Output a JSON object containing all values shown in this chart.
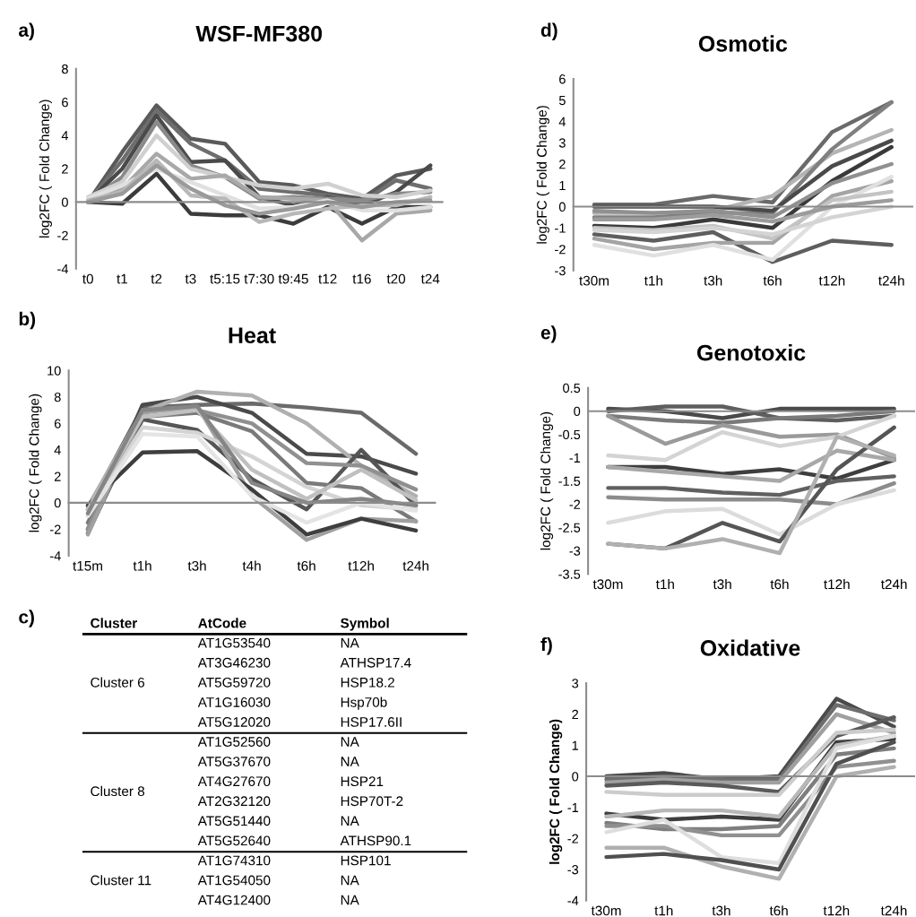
{
  "chart_data": [
    {
      "type": "line",
      "title": "WSF-MF380",
      "ylabel": "log2FC ( Fold Change)",
      "annotations": [
        "a)"
      ],
      "categories": [
        "t0",
        "t1",
        "t2",
        "t3",
        "t5:15",
        "t7:30",
        "t9:45",
        "t12",
        "t16",
        "t20",
        "t24"
      ],
      "ylim": [
        -4,
        8
      ],
      "yticks": [
        -4,
        -2,
        0,
        2,
        4,
        6,
        8
      ],
      "line_style": "solid",
      "series": [
        {
          "color": "#5a5a5a",
          "values": [
            0,
            3,
            5.8,
            3.8,
            3.5,
            1.2,
            1.0,
            0.5,
            0.2,
            1.6,
            2.0
          ]
        },
        {
          "color": "#6e6e6e",
          "values": [
            0,
            2.5,
            5.5,
            3.5,
            2.5,
            0.8,
            0.6,
            0.4,
            0,
            1.3,
            0.8
          ]
        },
        {
          "color": "#4a4a4a",
          "values": [
            0,
            2,
            5.2,
            2.4,
            2.5,
            0.3,
            -0.2,
            0.3,
            -0.2,
            0.6,
            2.2
          ]
        },
        {
          "color": "#8a8a8a",
          "values": [
            0,
            1.5,
            4.8,
            2.2,
            1.5,
            0.2,
            0.3,
            0.2,
            0.1,
            0.5,
            0.6
          ]
        },
        {
          "color": "#d0d0d0",
          "values": [
            0.3,
            1.2,
            4.0,
            2.0,
            1.5,
            1.0,
            0.8,
            1.1,
            0.4,
            0.3,
            0.7
          ]
        },
        {
          "color": "#3c3c3c",
          "values": [
            0,
            -0.1,
            1.7,
            -0.7,
            -0.8,
            -0.8,
            -1.3,
            -0.3,
            -1.3,
            -0.3,
            -0.3
          ]
        },
        {
          "color": "#a8a8a8",
          "values": [
            0,
            0.8,
            2.9,
            1.4,
            1.6,
            0.3,
            0.2,
            0.1,
            -2.3,
            -0.7,
            -0.5
          ]
        },
        {
          "color": "#e0e0e0",
          "values": [
            0.2,
            1.0,
            2.0,
            1.2,
            0.4,
            -0.4,
            -0.3,
            0.1,
            -0.5,
            -0.5,
            -0.3
          ]
        },
        {
          "color": "#b8b8b8",
          "values": [
            0.1,
            0.6,
            2.5,
            0.4,
            0.2,
            -1.2,
            -0.7,
            -0.4,
            -0.2,
            -0.2,
            0.3
          ]
        },
        {
          "color": "#9a9a9a",
          "values": [
            0,
            0.5,
            2.2,
            0.8,
            -0.2,
            -0.7,
            -0.4,
            0,
            -0.3,
            0,
            0.1
          ]
        }
      ]
    },
    {
      "type": "line",
      "title": "Heat",
      "ylabel": "log2FC ( Fold Change)",
      "annotations": [
        "b)"
      ],
      "categories": [
        "t15m",
        "t1h",
        "t3h",
        "t4h",
        "t6h",
        "t12h",
        "t24h"
      ],
      "ylim": [
        -4,
        10
      ],
      "yticks": [
        -4,
        -2,
        0,
        2,
        4,
        6,
        8,
        10
      ],
      "line_style": "solid",
      "series": [
        {
          "color": "#6a6a6a",
          "values": [
            -0.5,
            7.2,
            7.4,
            7.5,
            7.2,
            6.8,
            3.7
          ]
        },
        {
          "color": "#4a4a4a",
          "values": [
            -2,
            7.4,
            8.0,
            6.8,
            3.7,
            3.5,
            2.2
          ]
        },
        {
          "color": "#b0b0b0",
          "values": [
            -0.3,
            6.9,
            8.4,
            8.1,
            6.0,
            2.8,
            0.5
          ]
        },
        {
          "color": "#555555",
          "values": [
            -2.3,
            6.3,
            5.5,
            1.8,
            -0.5,
            4.0,
            -0.2
          ]
        },
        {
          "color": "#7a7a7a",
          "values": [
            -1.5,
            6.5,
            6.8,
            5.4,
            1.5,
            1.1,
            -1.4
          ]
        },
        {
          "color": "#909090",
          "values": [
            -2,
            7.0,
            7.0,
            6.0,
            3.0,
            2.8,
            1.0
          ]
        },
        {
          "color": "#a0a0a0",
          "values": [
            -2.4,
            6.8,
            7.3,
            0.5,
            -2.8,
            -1.2,
            -1.4
          ]
        },
        {
          "color": "#3e3e3e",
          "values": [
            -0.2,
            3.8,
            3.9,
            1.0,
            -2.4,
            -1.2,
            -2.1
          ]
        },
        {
          "color": "#d4d4d4",
          "values": [
            -1,
            5.7,
            5.3,
            3.5,
            1.2,
            -0.2,
            -0.5
          ]
        },
        {
          "color": "#e4e4e4",
          "values": [
            -1,
            5.2,
            5.0,
            0.5,
            -1.5,
            0.0,
            -0.6
          ]
        },
        {
          "color": "#c0c0c0",
          "values": [
            -0.5,
            6.5,
            7.0,
            2.5,
            0.3,
            2.5,
            0.2
          ]
        },
        {
          "color": "#858585",
          "values": [
            -0.8,
            7.0,
            7.3,
            1.5,
            0.0,
            0.3,
            -0.2
          ]
        }
      ]
    },
    {
      "type": "other",
      "annotations": [
        "c)"
      ],
      "categories": [
        "Cluster",
        "AtCode",
        "Symbol"
      ],
      "cell_labels": [
        [
          "Cluster 6",
          "AT1G53540",
          "NA"
        ],
        [
          null,
          "AT3G46230",
          "ATHSP17.4"
        ],
        [
          null,
          "AT5G59720",
          "HSP18.2"
        ],
        [
          null,
          "AT1G16030",
          "Hsp70b"
        ],
        [
          null,
          "AT5G12020",
          "HSP17.6II"
        ],
        [
          "Cluster 8",
          "AT1G52560",
          "NA"
        ],
        [
          null,
          "AT5G37670",
          "NA"
        ],
        [
          null,
          "AT4G27670",
          "HSP21"
        ],
        [
          null,
          "AT2G32120",
          "HSP70T-2"
        ],
        [
          null,
          "AT5G51440",
          "NA"
        ],
        [
          null,
          "AT5G52640",
          "ATHSP90.1"
        ],
        [
          "Cluster 11",
          "AT1G74310",
          "HSP101"
        ],
        [
          null,
          "AT1G54050",
          "NA"
        ],
        [
          null,
          "AT4G12400",
          "NA"
        ]
      ]
    },
    {
      "type": "line",
      "title": "Osmotic",
      "ylabel": "log2FC ( Fold Change)",
      "annotations": [
        "d)"
      ],
      "categories": [
        "t30m",
        "t1h",
        "t3h",
        "t6h",
        "t12h",
        "t24h"
      ],
      "ylim": [
        -3,
        6
      ],
      "yticks": [
        -3,
        -2,
        -1,
        0,
        1,
        2,
        3,
        4,
        5,
        6
      ],
      "line_style": "solid",
      "series": [
        {
          "color": "#6a6a6a",
          "values": [
            0.1,
            0.1,
            0.5,
            0.2,
            3.5,
            4.9
          ]
        },
        {
          "color": "#b4b4b4",
          "values": [
            -0.3,
            -0.3,
            -0.2,
            0.5,
            2.5,
            3.6
          ]
        },
        {
          "color": "#808080",
          "values": [
            -0.5,
            -0.5,
            -0.3,
            -0.3,
            2.7,
            4.9
          ]
        },
        {
          "color": "#4a4a4a",
          "values": [
            0,
            0,
            0,
            -0.2,
            1.9,
            3.1
          ]
        },
        {
          "color": "#3a3a3a",
          "values": [
            -0.9,
            -1.0,
            -0.6,
            -1.0,
            1.2,
            2.8
          ]
        },
        {
          "color": "#909090",
          "values": [
            -0.2,
            -0.3,
            -0.2,
            -0.5,
            1.1,
            2.0
          ]
        },
        {
          "color": "#5e5e5e",
          "values": [
            -1.3,
            -1.6,
            -1.2,
            -2.6,
            -1.6,
            -1.8
          ]
        },
        {
          "color": "#a4a4a4",
          "values": [
            -1.5,
            -2.0,
            -1.7,
            -1.7,
            0.5,
            1.2
          ]
        },
        {
          "color": "#e0e0e0",
          "values": [
            -1.8,
            -2.3,
            -1.8,
            -2.5,
            0.0,
            1.4
          ]
        },
        {
          "color": "#c4c4c4",
          "values": [
            -1.0,
            -1.1,
            -0.9,
            -1.5,
            0.3,
            0.7
          ]
        },
        {
          "color": "#9c9c9c",
          "values": [
            -0.6,
            -0.6,
            -0.4,
            -0.7,
            0.0,
            0.3
          ]
        },
        {
          "color": "#d4d4d4",
          "values": [
            -1.1,
            -1.2,
            -1.0,
            -1.3,
            -0.5,
            0.0
          ]
        }
      ]
    },
    {
      "type": "line",
      "title": "Genotoxic",
      "ylabel": "log2FC ( Fold Change)",
      "annotations": [
        "e)"
      ],
      "categories": [
        "t30m",
        "t1h",
        "t3h",
        "t6h",
        "t12h",
        "t24h"
      ],
      "ylim": [
        -3.5,
        0.5
      ],
      "yticks": [
        -3.5,
        -3,
        -2.5,
        -2,
        -1.5,
        -1,
        -0.5,
        0,
        0.5
      ],
      "line_style": "solid",
      "series": [
        {
          "color": "#4a4a4a",
          "values": [
            0.05,
            0.0,
            -0.15,
            0.05,
            0.05,
            0.05
          ]
        },
        {
          "color": "#5e5e5e",
          "values": [
            0.0,
            0.1,
            0.1,
            -0.15,
            -0.2,
            -0.1
          ]
        },
        {
          "color": "#7a7a7a",
          "values": [
            -0.1,
            -0.2,
            -0.25,
            -0.15,
            -0.1,
            0.0
          ]
        },
        {
          "color": "#9a9a9a",
          "values": [
            -0.1,
            -0.7,
            -0.3,
            -0.55,
            -0.5,
            -1.0
          ]
        },
        {
          "color": "#d4d4d4",
          "values": [
            -0.95,
            -1.05,
            -0.45,
            -0.75,
            -0.55,
            -0.1
          ]
        },
        {
          "color": "#3e3e3e",
          "values": [
            -1.2,
            -1.2,
            -1.35,
            -1.25,
            -1.45,
            -1.05
          ]
        },
        {
          "color": "#a8a8a8",
          "values": [
            -1.2,
            -1.3,
            -1.4,
            -1.5,
            -0.85,
            -1.05
          ]
        },
        {
          "color": "#606060",
          "values": [
            -1.65,
            -1.65,
            -1.75,
            -1.8,
            -1.5,
            -1.4
          ]
        },
        {
          "color": "#8c8c8c",
          "values": [
            -1.85,
            -1.9,
            -1.9,
            -1.9,
            -2.0,
            -1.55
          ]
        },
        {
          "color": "#dcdcdc",
          "values": [
            -2.4,
            -2.15,
            -2.1,
            -2.65,
            -2.0,
            -1.7
          ]
        },
        {
          "color": "#555555",
          "values": [
            -2.85,
            -2.95,
            -2.4,
            -2.8,
            -1.25,
            -0.35
          ]
        },
        {
          "color": "#b0b0b0",
          "values": [
            -2.85,
            -2.95,
            -2.75,
            -3.05,
            -0.55,
            -0.95
          ]
        }
      ]
    },
    {
      "type": "line",
      "title": "Oxidative",
      "ylabel": "log2FC ( Fold Change)",
      "annotations": [
        "f)"
      ],
      "categories": [
        "t30m",
        "t1h",
        "t3h",
        "t6h",
        "t12h",
        "t24h"
      ],
      "ylim": [
        -4,
        3
      ],
      "yticks": [
        -4,
        -3,
        -2,
        -1,
        0,
        1,
        2,
        3
      ],
      "line_style": "solid",
      "series": [
        {
          "color": "#4a4a4a",
          "values": [
            0,
            0.1,
            -0.1,
            0,
            2.5,
            1.6
          ]
        },
        {
          "color": "#6e6e6e",
          "values": [
            -0.1,
            0,
            -0.1,
            -0.1,
            2.3,
            1.8
          ]
        },
        {
          "color": "#a0a0a0",
          "values": [
            -0.2,
            -0.1,
            -0.2,
            -0.2,
            2.0,
            1.4
          ]
        },
        {
          "color": "#5a5a5a",
          "values": [
            -0.3,
            -0.2,
            -0.3,
            -0.5,
            1.3,
            1.9
          ]
        },
        {
          "color": "#cccccc",
          "values": [
            -0.5,
            -0.6,
            -0.6,
            -0.6,
            1.4,
            1.5
          ]
        },
        {
          "color": "#3e3e3e",
          "values": [
            -1.2,
            -1.4,
            -1.3,
            -1.4,
            1.1,
            1.2
          ]
        },
        {
          "color": "#7e7e7e",
          "values": [
            -1.5,
            -1.7,
            -1.7,
            -1.6,
            0.7,
            0.9
          ]
        },
        {
          "color": "#b8b8b8",
          "values": [
            -1.3,
            -1.1,
            -1.1,
            -1.3,
            1.0,
            1.3
          ]
        },
        {
          "color": "#909090",
          "values": [
            -1.6,
            -1.6,
            -1.9,
            -1.9,
            0.3,
            0.5
          ]
        },
        {
          "color": "#dedede",
          "values": [
            -1.8,
            -1.4,
            -2.6,
            -2.8,
            0.9,
            1.3
          ]
        },
        {
          "color": "#b0b0b0",
          "values": [
            -2.3,
            -2.3,
            -2.9,
            -3.3,
            0.0,
            0.3
          ]
        },
        {
          "color": "#505050",
          "values": [
            -2.6,
            -2.5,
            -2.7,
            -3.0,
            0.4,
            1.1
          ]
        }
      ]
    }
  ]
}
